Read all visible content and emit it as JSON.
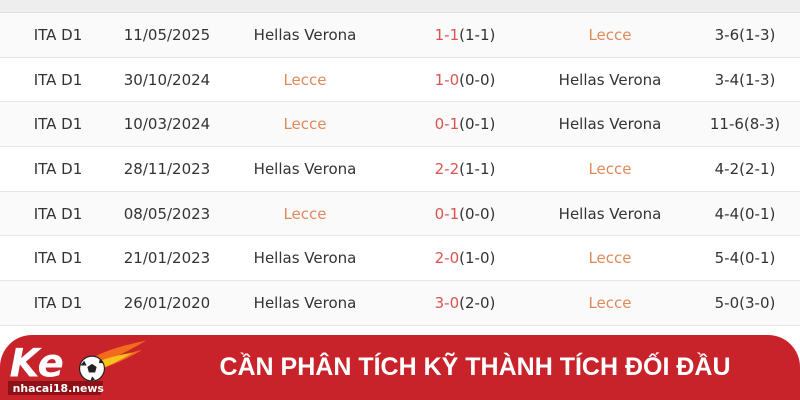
{
  "logo": {
    "text": "Ke",
    "domain": "nhacai18.news"
  },
  "matches": [
    {
      "league": "ITA D1",
      "date": "11/05/2025",
      "home": "Hellas Verona",
      "score": "1-1",
      "ht": "(1-1)",
      "away": "Lecce",
      "handicap": "3-6(1-3)",
      "home_highlight": false
    },
    {
      "league": "ITA D1",
      "date": "30/10/2024",
      "home": "Lecce",
      "score": "1-0",
      "ht": "(0-0)",
      "away": "Hellas Verona",
      "handicap": "3-4(1-3)",
      "home_highlight": true
    },
    {
      "league": "ITA D1",
      "date": "10/03/2024",
      "home": "Lecce",
      "score": "0-1",
      "ht": "(0-1)",
      "away": "Hellas Verona",
      "handicap": "11-6(8-3)",
      "home_highlight": true
    },
    {
      "league": "ITA D1",
      "date": "28/11/2023",
      "home": "Hellas Verona",
      "score": "2-2",
      "ht": "(1-1)",
      "away": "Lecce",
      "handicap": "4-2(2-1)",
      "home_highlight": false
    },
    {
      "league": "ITA D1",
      "date": "08/05/2023",
      "home": "Lecce",
      "score": "0-1",
      "ht": "(0-0)",
      "away": "Hellas Verona",
      "handicap": "4-4(0-1)",
      "home_highlight": true
    },
    {
      "league": "ITA D1",
      "date": "21/01/2023",
      "home": "Hellas Verona",
      "score": "2-0",
      "ht": "(1-0)",
      "away": "Lecce",
      "handicap": "5-4(0-1)",
      "home_highlight": false
    },
    {
      "league": "ITA D1",
      "date": "26/01/2020",
      "home": "Hellas Verona",
      "score": "3-0",
      "ht": "(2-0)",
      "away": "Lecce",
      "handicap": "5-0(3-0)",
      "home_highlight": false
    }
  ],
  "banner": {
    "title": "CẦN PHÂN TÍCH KỸ THÀNH TÍCH ĐỐI ĐẦU"
  },
  "colors": {
    "banner": "#c8232a",
    "team_highlight": "#e08a5a",
    "score": "#d9534f"
  }
}
